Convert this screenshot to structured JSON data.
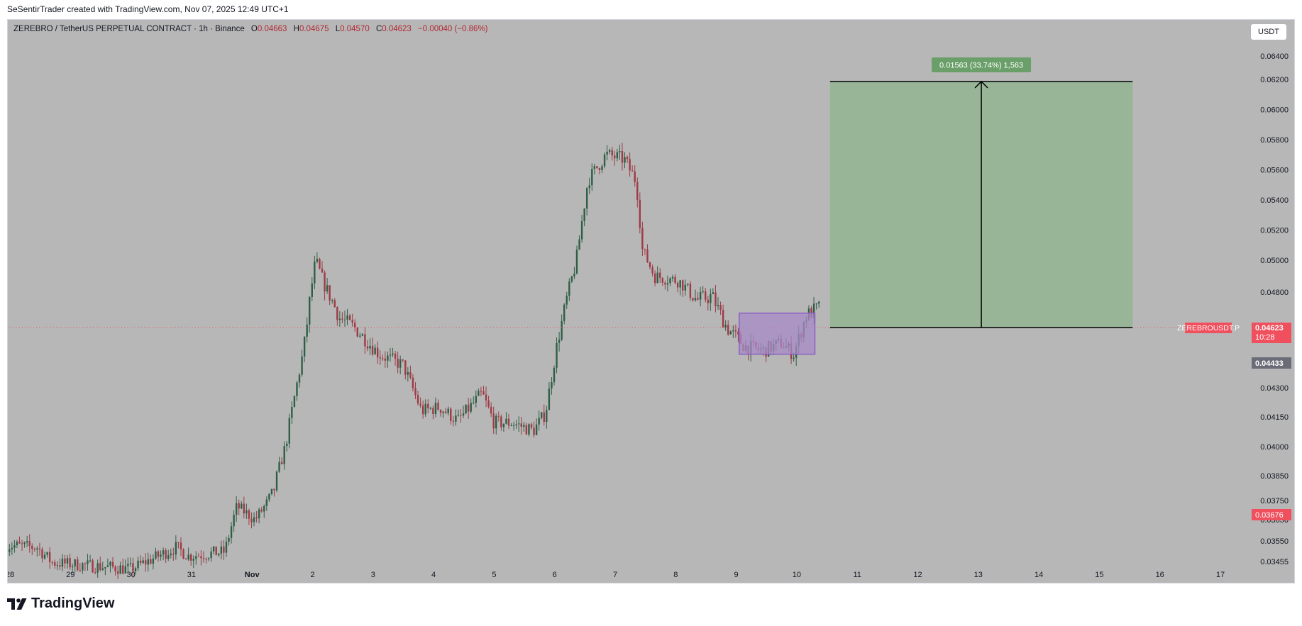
{
  "caption": "SeSentirTrader created with TradingView.com, Nov 07, 2025 12:49 UTC+1",
  "header": {
    "symbol": "ZEREBRO / TetherUS PERPETUAL CONTRACT · 1h · Binance",
    "open_label": "O",
    "open": "0.04663",
    "high_label": "H",
    "high": "0.04675",
    "low_label": "L",
    "low": "0.04570",
    "close_label": "C",
    "close": "0.04623",
    "change": "−0.00040 (−0.86%)"
  },
  "currency_button": "USDT",
  "brand": "TradingView",
  "colors": {
    "background": "#b7b7b7",
    "up_candle": "#2f5e46",
    "down_candle": "#9e3b45",
    "target_zone": "#98b598",
    "consolidation_box": "#a78bc7",
    "price_tag": "#f0505e",
    "grey_tag": "#6a6d78",
    "measure_label": "#6a9f6a"
  },
  "chart_data": {
    "type": "candlestick",
    "timeframe": "1h",
    "ylim": [
      0.03455,
      0.0646
    ],
    "y_ticks": [
      "0.06400",
      "0.06200",
      "0.06000",
      "0.05800",
      "0.05600",
      "0.05400",
      "0.05200",
      "0.05000",
      "0.04800",
      "0.04300",
      "0.04150",
      "0.04000",
      "0.03850",
      "0.03750",
      "0.03650",
      "0.03550",
      "0.03455"
    ],
    "x_ticks": [
      "28",
      "29",
      "30",
      "31",
      "Nov",
      "2",
      "3",
      "4",
      "5",
      "6",
      "7",
      "8",
      "9",
      "10",
      "11",
      "12",
      "13",
      "14",
      "15",
      "16",
      "17"
    ],
    "x_range_days": [
      -3.0,
      17.0
    ],
    "price_anchors": [
      [
        -3.05,
        0.0353
      ],
      [
        -2.55,
        0.0352
      ],
      [
        -2.3,
        0.0345
      ],
      [
        -1.0,
        0.0342
      ],
      [
        -0.25,
        0.0352
      ],
      [
        -0.05,
        0.0348
      ],
      [
        0.55,
        0.035
      ],
      [
        0.75,
        0.0372
      ],
      [
        1.05,
        0.0365
      ],
      [
        1.35,
        0.0378
      ],
      [
        1.55,
        0.04
      ],
      [
        1.85,
        0.045
      ],
      [
        2.05,
        0.05
      ],
      [
        2.2,
        0.0484
      ],
      [
        2.45,
        0.0467
      ],
      [
        2.7,
        0.0462
      ],
      [
        3.1,
        0.0448
      ],
      [
        3.5,
        0.0442
      ],
      [
        3.8,
        0.0418
      ],
      [
        4.1,
        0.042
      ],
      [
        4.4,
        0.0413
      ],
      [
        4.8,
        0.0427
      ],
      [
        5.0,
        0.0412
      ],
      [
        5.3,
        0.0412
      ],
      [
        5.65,
        0.0408
      ],
      [
        5.85,
        0.0417
      ],
      [
        6.05,
        0.0455
      ],
      [
        6.35,
        0.0498
      ],
      [
        6.55,
        0.0553
      ],
      [
        6.85,
        0.057
      ],
      [
        7.15,
        0.0567
      ],
      [
        7.35,
        0.0552
      ],
      [
        7.45,
        0.0507
      ],
      [
        7.65,
        0.049
      ],
      [
        8.05,
        0.0487
      ],
      [
        8.35,
        0.0476
      ],
      [
        8.6,
        0.0478
      ],
      [
        8.85,
        0.0462
      ],
      [
        9.15,
        0.0452
      ],
      [
        9.45,
        0.045
      ],
      [
        9.75,
        0.0454
      ],
      [
        9.95,
        0.0448
      ],
      [
        10.15,
        0.0468
      ],
      [
        10.35,
        0.0472
      ]
    ],
    "candle_range": [
      -3.05,
      10.4
    ],
    "consolidation_box": {
      "x": [
        9.05,
        10.3
      ],
      "y": [
        0.0448,
        0.04695
      ]
    },
    "target_zone": {
      "x": [
        10.55,
        15.55
      ],
      "y": [
        0.04623,
        0.06186
      ]
    },
    "measure": {
      "x": 13.05,
      "from": 0.04623,
      "to": 0.06186,
      "label": "0.01563 (33.74%) 1,563"
    },
    "last_price": {
      "value": 0.04623,
      "label": "0.04623",
      "symbol_label": "ZEREBROUSDT.P",
      "countdown": "10:28"
    },
    "price_tags": [
      {
        "value": 0.04433,
        "label": "0.04433",
        "color": "grey"
      },
      {
        "value": 0.03676,
        "label": "0.03676",
        "color": "red"
      }
    ]
  }
}
